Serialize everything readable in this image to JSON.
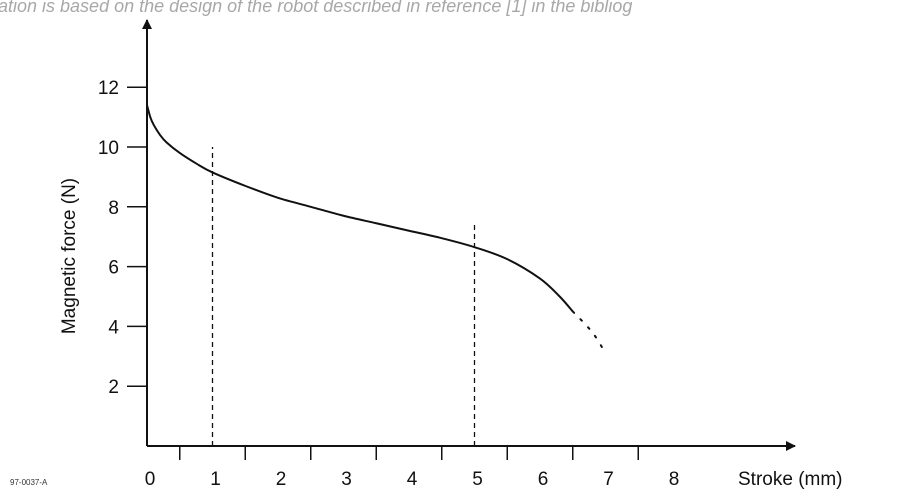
{
  "caption": "ation is based on the design of the robot described in reference [1] in the bibliog",
  "figure_id": "97-0037-A",
  "chart_data": {
    "type": "line",
    "title": "",
    "xlabel": "Stroke (mm)",
    "ylabel": "Magnetic force (N)",
    "xlim": [
      0,
      8
    ],
    "ylim": [
      0,
      12
    ],
    "x_ticks": [
      0,
      1,
      2,
      3,
      4,
      5,
      6,
      7,
      8
    ],
    "y_ticks": [
      2,
      4,
      6,
      8,
      10,
      12
    ],
    "grid": false,
    "series": [
      {
        "x": [
          0,
          0.05,
          0.1,
          0.2,
          0.3,
          0.5,
          0.75,
          1.0,
          1.5,
          2.0,
          2.5,
          3.0,
          3.5,
          4.0,
          4.5,
          5.0,
          5.5,
          6.0,
          6.3,
          6.5
        ],
        "y": [
          11.4,
          11.0,
          10.75,
          10.4,
          10.15,
          9.8,
          9.45,
          9.15,
          8.7,
          8.3,
          8.0,
          7.7,
          7.45,
          7.2,
          6.95,
          6.65,
          6.25,
          5.6,
          5.0,
          4.5
        ]
      },
      {
        "style": "dotted",
        "x": [
          6.5,
          6.8,
          7.0
        ],
        "y": [
          4.5,
          3.8,
          3.1
        ]
      }
    ],
    "reference_lines": [
      {
        "orientation": "vertical",
        "style": "dashed",
        "x": 1,
        "y_range": [
          0,
          10
        ]
      },
      {
        "orientation": "vertical",
        "style": "dashed",
        "x": 5,
        "y_range": [
          0,
          7.5
        ]
      }
    ]
  }
}
